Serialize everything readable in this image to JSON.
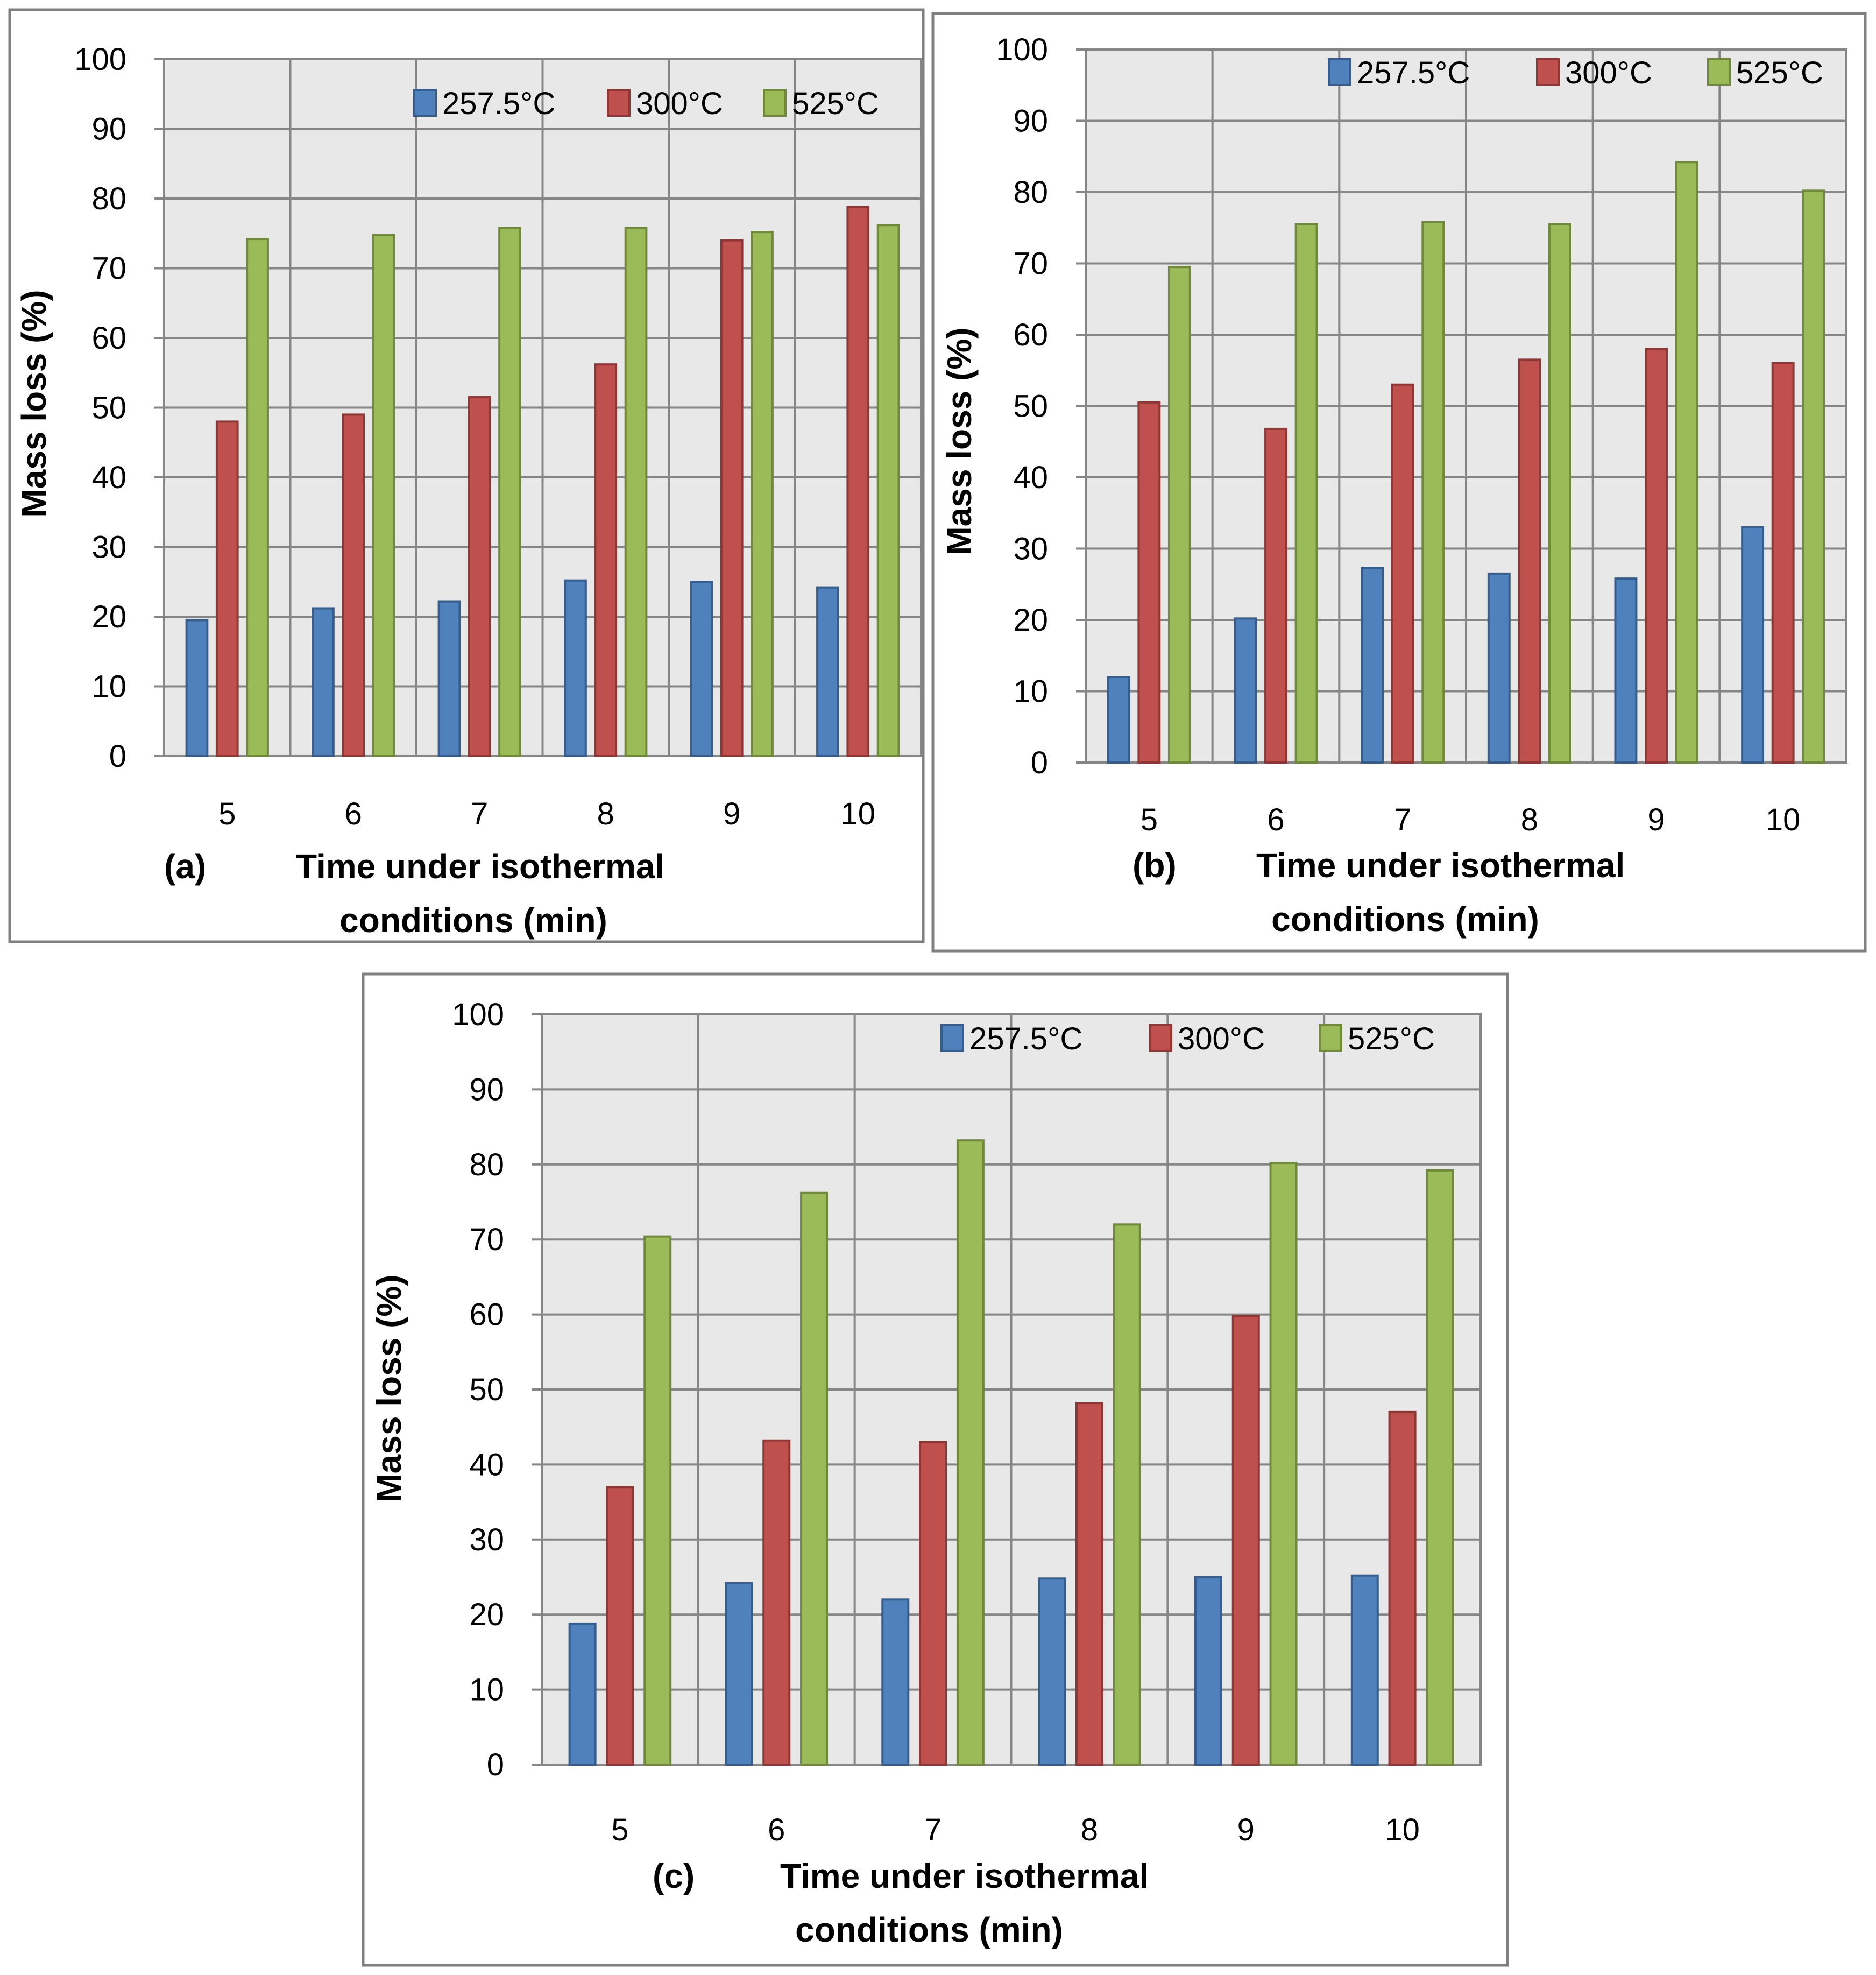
{
  "figure": {
    "background": "#ffffff",
    "plot_background": "#e8e8e8",
    "frame_color": "#808080",
    "grid_color": "#868686"
  },
  "chart_data": [
    {
      "panel": "(a)",
      "type": "bar",
      "categories": [
        "5",
        "6",
        "7",
        "8",
        "9",
        "10"
      ],
      "series": [
        {
          "name": "257.5°C",
          "color": "#4f81bd",
          "border": "#385d8a",
          "values": [
            19.5,
            21.2,
            22.2,
            25.2,
            25.0,
            24.2
          ]
        },
        {
          "name": "300°C",
          "color": "#c0504d",
          "border": "#8c3836",
          "values": [
            48.0,
            49.0,
            51.5,
            56.2,
            74.0,
            78.8
          ]
        },
        {
          "name": "525°C",
          "color": "#9bbb59",
          "border": "#71893f",
          "values": [
            74.2,
            74.8,
            75.8,
            75.8,
            75.2,
            76.2
          ]
        }
      ],
      "ylabel": "Mass loss (%)",
      "xlabel_line1": "Time under isothermal",
      "xlabel_line2": "conditions (min)",
      "ylim": [
        0,
        100
      ],
      "yticks": [
        0,
        10,
        20,
        30,
        40,
        50,
        60,
        70,
        80,
        90,
        100
      ],
      "grid": true,
      "legend_position": "top-right"
    },
    {
      "panel": "(b)",
      "type": "bar",
      "categories": [
        "5",
        "6",
        "7",
        "8",
        "9",
        "10"
      ],
      "series": [
        {
          "name": "257.5°C",
          "color": "#4f81bd",
          "border": "#385d8a",
          "values": [
            12.0,
            20.2,
            27.3,
            26.5,
            25.8,
            33.0
          ]
        },
        {
          "name": "300°C",
          "color": "#c0504d",
          "border": "#8c3836",
          "values": [
            50.5,
            46.8,
            53.0,
            56.5,
            58.0,
            56.0
          ]
        },
        {
          "name": "525°C",
          "color": "#9bbb59",
          "border": "#71893f",
          "values": [
            69.5,
            75.5,
            75.8,
            75.5,
            84.2,
            80.2
          ]
        }
      ],
      "ylabel": "Mass loss (%)",
      "xlabel_line1": "Time under isothermal",
      "xlabel_line2": "conditions (min)",
      "ylim": [
        0,
        100
      ],
      "yticks": [
        0,
        10,
        20,
        30,
        40,
        50,
        60,
        70,
        80,
        90,
        100
      ],
      "grid": true,
      "legend_position": "top-right"
    },
    {
      "panel": "(c)",
      "type": "bar",
      "categories": [
        "5",
        "6",
        "7",
        "8",
        "9",
        "10"
      ],
      "series": [
        {
          "name": "257.5°C",
          "color": "#4f81bd",
          "border": "#385d8a",
          "values": [
            18.8,
            24.2,
            22.0,
            24.8,
            25.0,
            25.2
          ]
        },
        {
          "name": "300°C",
          "color": "#c0504d",
          "border": "#8c3836",
          "values": [
            37.0,
            43.2,
            43.0,
            48.2,
            59.8,
            47.0
          ]
        },
        {
          "name": "525°C",
          "color": "#9bbb59",
          "border": "#71893f",
          "values": [
            70.4,
            76.2,
            83.2,
            72.0,
            80.2,
            79.2
          ]
        }
      ],
      "ylabel": "Mass loss (%)",
      "xlabel_line1": "Time under isothermal",
      "xlabel_line2": "conditions (min)",
      "ylim": [
        0,
        100
      ],
      "yticks": [
        0,
        10,
        20,
        30,
        40,
        50,
        60,
        70,
        80,
        90,
        100
      ],
      "grid": true,
      "legend_position": "top-right"
    }
  ]
}
